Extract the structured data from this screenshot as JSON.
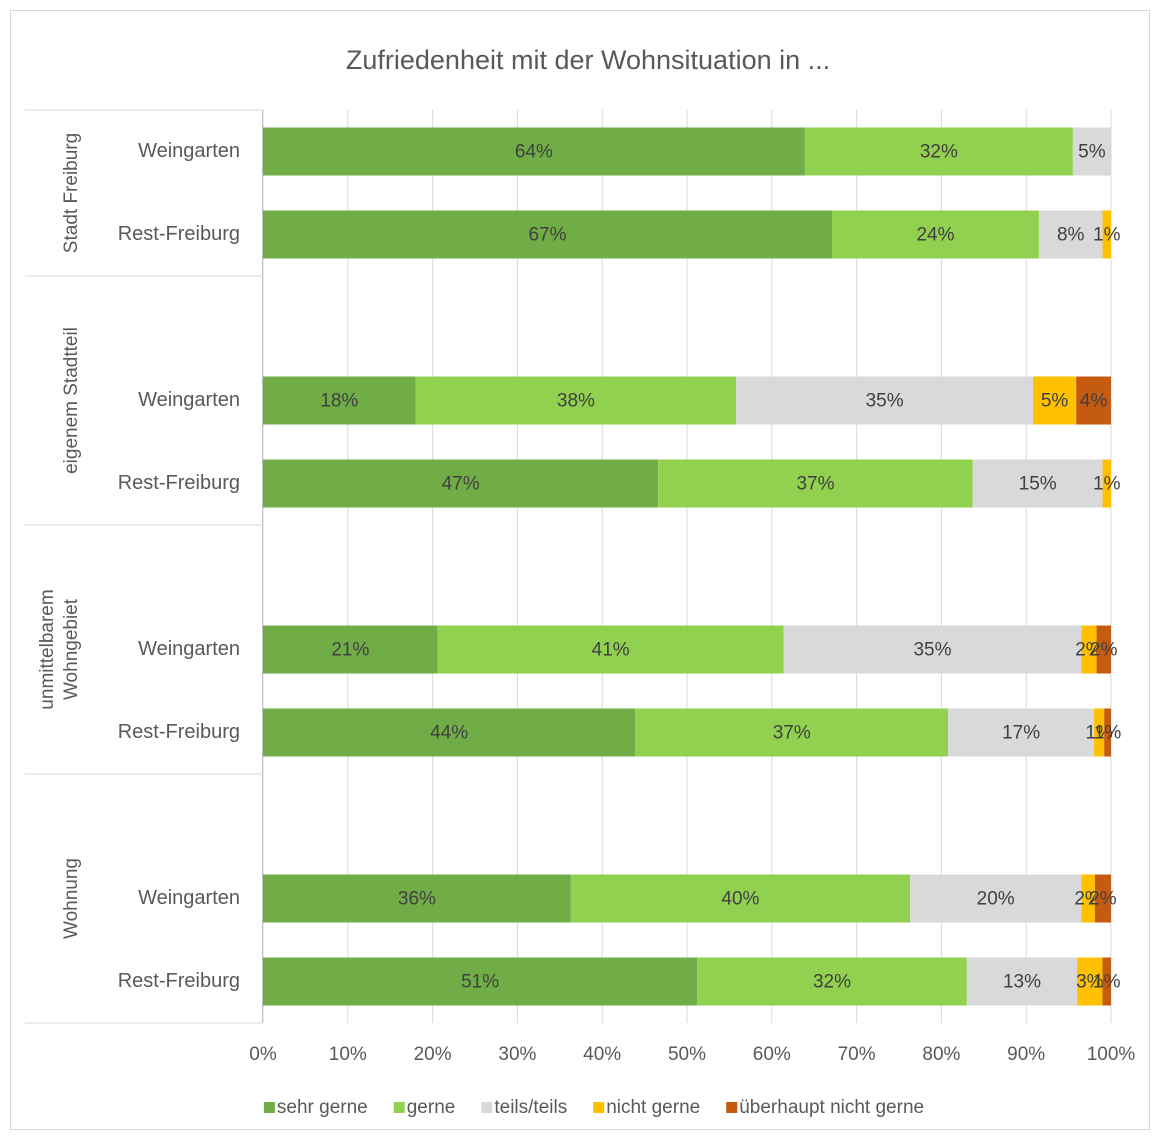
{
  "chart_data": {
    "type": "stacked_barh",
    "title": "Zufriedenheit mit der Wohnsituation in ...",
    "groups": [
      {
        "label_lines": [
          "Stadt  Freiburg"
        ],
        "categories": [
          "Weingarten",
          "Rest-Freiburg"
        ]
      },
      {
        "label_lines": [
          "eigenem Stadtteil"
        ],
        "categories": [
          "Weingarten",
          "Rest-Freiburg"
        ]
      },
      {
        "label_lines": [
          "unmittelbarem",
          "Wohngebiet"
        ],
        "categories": [
          "Weingarten",
          "Rest-Freiburg"
        ]
      },
      {
        "label_lines": [
          "Wohnung"
        ],
        "categories": [
          "Weingarten",
          "Rest-Freiburg"
        ]
      }
    ],
    "series": [
      {
        "name": "sehr gerne",
        "color": "#70ad47",
        "values": [
          63.9,
          67.1,
          18.0,
          46.6,
          20.6,
          43.9,
          36.3,
          51.2
        ],
        "value_labels": [
          "64%",
          "67%",
          "18%",
          "47%",
          "21%",
          "44%",
          "36%",
          "51%"
        ]
      },
      {
        "name": "gerne",
        "color": "#92d050",
        "values": [
          31.6,
          24.4,
          37.8,
          37.1,
          40.8,
          36.9,
          40.0,
          31.8
        ],
        "value_labels": [
          "32%",
          "24%",
          "38%",
          "37%",
          "41%",
          "37%",
          "40%",
          "32%"
        ]
      },
      {
        "name": "teils/teils",
        "color": "#d9d9d9",
        "values": [
          4.5,
          7.5,
          35.0,
          15.3,
          35.1,
          17.2,
          20.2,
          13.0
        ],
        "value_labels": [
          "5%",
          "8%",
          "35%",
          "15%",
          "35%",
          "17%",
          "20%",
          "13%"
        ]
      },
      {
        "name": "nicht gerne",
        "color": "#ffc000",
        "values": [
          null,
          1.0,
          5.1,
          1.0,
          1.8,
          1.2,
          1.6,
          3.0
        ],
        "value_labels": [
          null,
          "1%",
          "5%",
          "1%",
          "2%",
          "1%",
          "2%",
          "3%"
        ]
      },
      {
        "name": "überhaupt nicht gerne",
        "color": "#c55a11",
        "values": [
          null,
          null,
          4.1,
          null,
          1.7,
          0.8,
          1.9,
          1.0
        ],
        "value_labels": [
          null,
          null,
          "4%",
          null,
          "2%",
          "1%",
          "2%",
          "1%"
        ]
      }
    ],
    "xlim": [
      0,
      100
    ],
    "xticks": [
      {
        "value": 0,
        "label": "0%"
      },
      {
        "value": 10,
        "label": "10%"
      },
      {
        "value": 20,
        "label": "20%"
      },
      {
        "value": 30,
        "label": "30%"
      },
      {
        "value": 40,
        "label": "40%"
      },
      {
        "value": 50,
        "label": "50%"
      },
      {
        "value": 60,
        "label": "60%"
      },
      {
        "value": 70,
        "label": "70%"
      },
      {
        "value": 80,
        "label": "80%"
      },
      {
        "value": 90,
        "label": "90%"
      },
      {
        "value": 100,
        "label": "100%"
      }
    ],
    "grid": true,
    "legend": "bottom"
  }
}
